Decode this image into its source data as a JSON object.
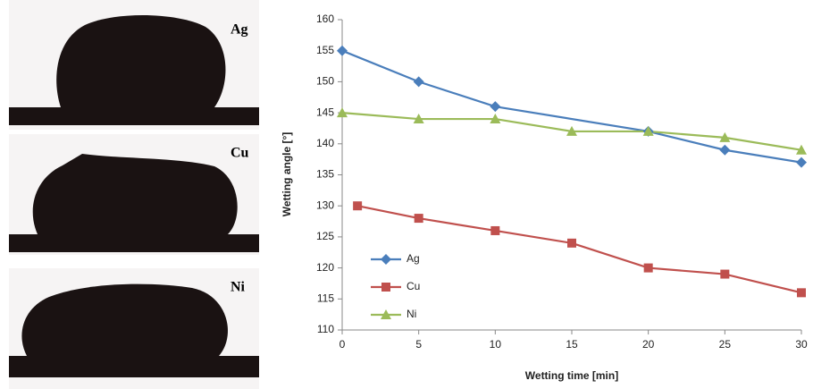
{
  "images": [
    {
      "label": "Ag"
    },
    {
      "label": "Cu"
    },
    {
      "label": "Ni"
    }
  ],
  "chart_data": {
    "type": "line",
    "x_label": "Wetting time  [min]",
    "y_label": "Wetting angle  [°]",
    "xlim": [
      0,
      30
    ],
    "xticks": [
      0,
      5,
      10,
      15,
      20,
      25,
      30
    ],
    "ylim": [
      110,
      160
    ],
    "yticks": [
      110,
      115,
      120,
      125,
      130,
      135,
      140,
      145,
      150,
      155,
      160
    ],
    "grid": false,
    "legend": "lower left",
    "series": [
      {
        "name": "Ag",
        "color": "#4a7ebb",
        "marker": "diamond",
        "x": [
          0,
          5,
          10,
          20,
          25,
          30
        ],
        "values": [
          155,
          150,
          146,
          142,
          139,
          137
        ]
      },
      {
        "name": "Cu",
        "color": "#c0504d",
        "marker": "square",
        "x": [
          1,
          5,
          10,
          15,
          20,
          25,
          30
        ],
        "values": [
          130,
          128,
          126,
          124,
          120,
          119,
          116
        ]
      },
      {
        "name": "Ni",
        "color": "#9bbb59",
        "marker": "triangle",
        "x": [
          0,
          5,
          10,
          15,
          20,
          25,
          30
        ],
        "values": [
          145,
          144,
          144,
          142,
          142,
          141,
          139
        ]
      }
    ]
  }
}
